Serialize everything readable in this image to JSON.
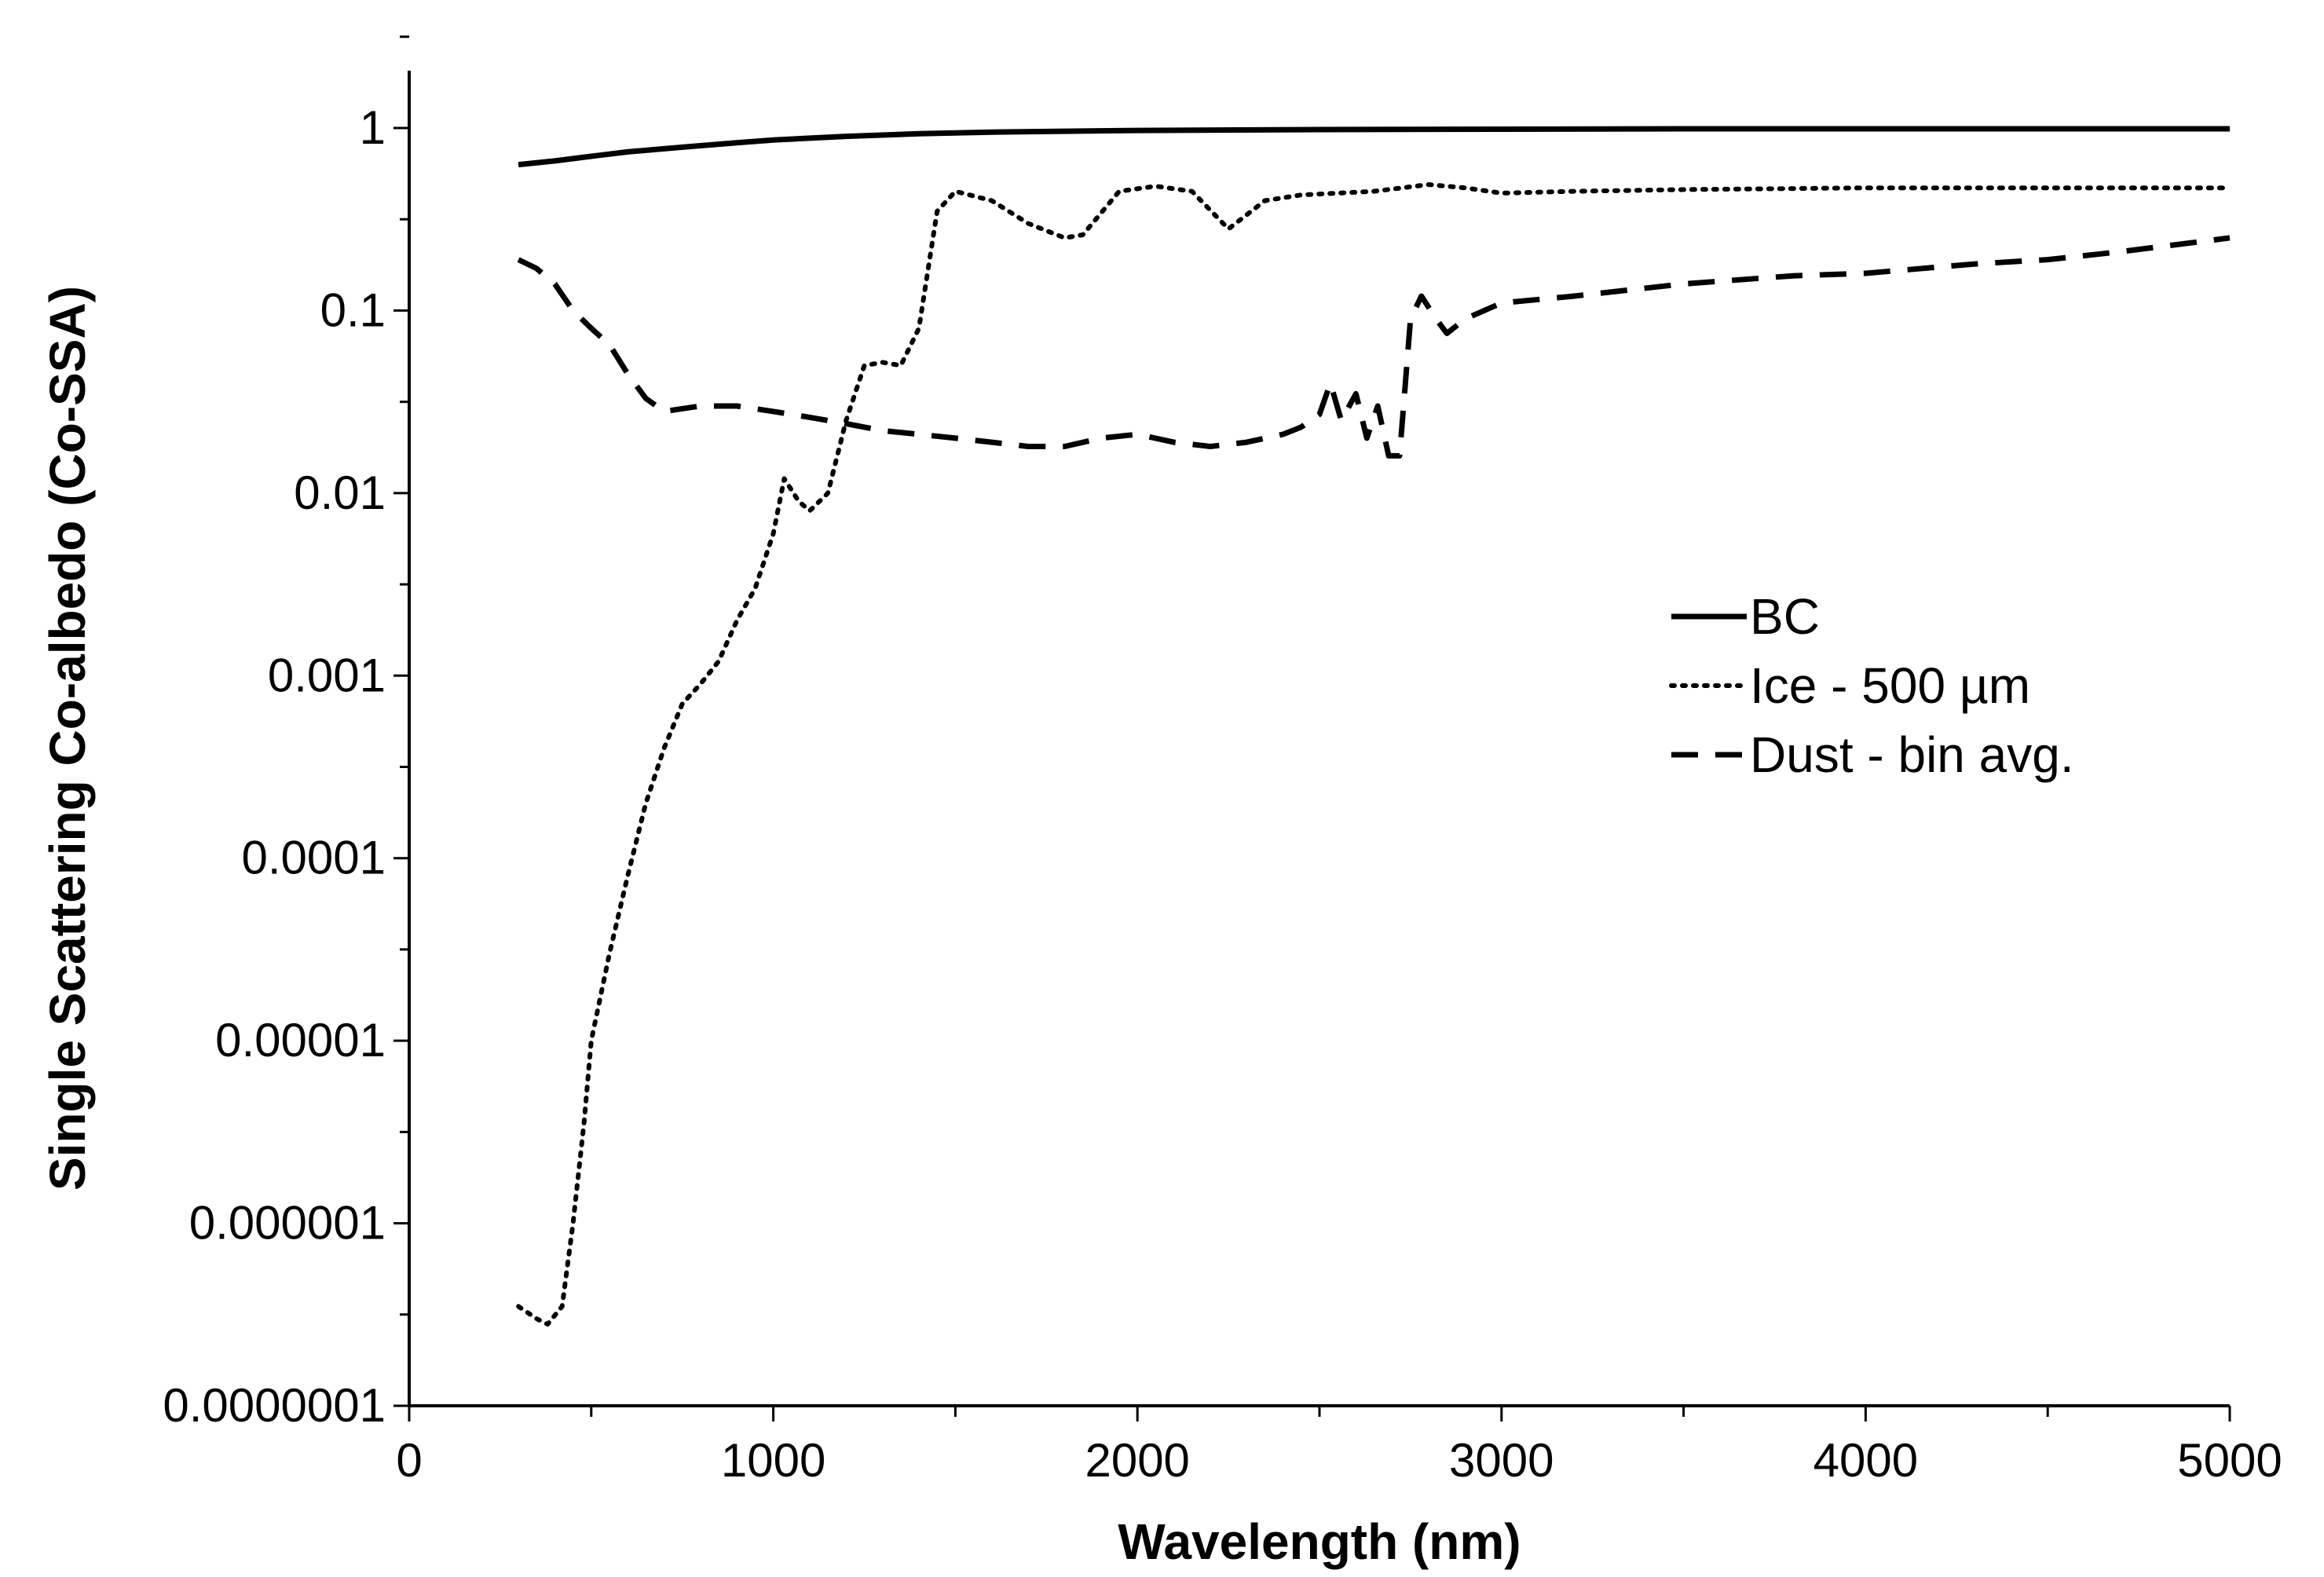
{
  "chart_data": {
    "type": "line",
    "title": "",
    "xlabel": "Wavelength (nm)",
    "ylabel": "Single Scattering Co-albedo (Co-SSA)",
    "x_scale": "linear",
    "y_scale": "log",
    "xlim": [
      0,
      5000
    ],
    "ylim": [
      1e-07,
      2
    ],
    "x_ticks": [
      0,
      1000,
      2000,
      3000,
      4000,
      5000
    ],
    "x_tick_labels": [
      "0",
      "1000",
      "2000",
      "3000",
      "4000",
      "5000"
    ],
    "y_ticks": [
      1e-07,
      1e-06,
      1e-05,
      0.0001,
      0.001,
      0.01,
      0.1,
      1
    ],
    "y_tick_labels": [
      "0.0000001",
      "0.000001",
      "0.00001",
      "0.0001",
      "0.001",
      "0.01",
      "0.1",
      "1"
    ],
    "grid": false,
    "legend_position": "center-right",
    "series": [
      {
        "name": "BC",
        "style": "solid",
        "color": "#000000",
        "points": [
          [
            300,
            0.63
          ],
          [
            400,
            0.66
          ],
          [
            500,
            0.7
          ],
          [
            600,
            0.74
          ],
          [
            700,
            0.77
          ],
          [
            800,
            0.8
          ],
          [
            900,
            0.83
          ],
          [
            1000,
            0.86
          ],
          [
            1200,
            0.9
          ],
          [
            1400,
            0.93
          ],
          [
            1600,
            0.95
          ],
          [
            1800,
            0.96
          ],
          [
            2000,
            0.97
          ],
          [
            2500,
            0.98
          ],
          [
            3000,
            0.985
          ],
          [
            3500,
            0.99
          ],
          [
            4000,
            0.99
          ],
          [
            4500,
            0.99
          ],
          [
            5000,
            0.99
          ]
        ]
      },
      {
        "name": "Ice - 500 µm",
        "style": "dotted",
        "color": "#000000",
        "points": [
          [
            300,
            3.5e-07
          ],
          [
            350,
            3e-07
          ],
          [
            380,
            2.8e-07
          ],
          [
            420,
            3.5e-07
          ],
          [
            450,
            1e-06
          ],
          [
            480,
            3.5e-06
          ],
          [
            500,
            1e-05
          ],
          [
            550,
            3e-05
          ],
          [
            600,
            8e-05
          ],
          [
            650,
            0.0002
          ],
          [
            700,
            0.0004
          ],
          [
            750,
            0.0007
          ],
          [
            800,
            0.0009
          ],
          [
            850,
            0.0012
          ],
          [
            900,
            0.002
          ],
          [
            950,
            0.003
          ],
          [
            1000,
            0.006
          ],
          [
            1030,
            0.012
          ],
          [
            1070,
            0.009
          ],
          [
            1100,
            0.008
          ],
          [
            1150,
            0.01
          ],
          [
            1200,
            0.025
          ],
          [
            1250,
            0.05
          ],
          [
            1300,
            0.052
          ],
          [
            1350,
            0.05
          ],
          [
            1400,
            0.08
          ],
          [
            1450,
            0.35
          ],
          [
            1500,
            0.45
          ],
          [
            1600,
            0.4
          ],
          [
            1700,
            0.3
          ],
          [
            1800,
            0.25
          ],
          [
            1850,
            0.26
          ],
          [
            1950,
            0.45
          ],
          [
            2050,
            0.48
          ],
          [
            2150,
            0.45
          ],
          [
            2250,
            0.28
          ],
          [
            2350,
            0.4
          ],
          [
            2450,
            0.43
          ],
          [
            2550,
            0.44
          ],
          [
            2650,
            0.45
          ],
          [
            2800,
            0.49
          ],
          [
            2900,
            0.47
          ],
          [
            3000,
            0.44
          ],
          [
            3200,
            0.45
          ],
          [
            3500,
            0.46
          ],
          [
            4000,
            0.47
          ],
          [
            4500,
            0.47
          ],
          [
            5000,
            0.47
          ]
        ]
      },
      {
        "name": "Dust - bin avg.",
        "style": "dashed",
        "color": "#000000",
        "points": [
          [
            300,
            0.19
          ],
          [
            350,
            0.17
          ],
          [
            400,
            0.14
          ],
          [
            450,
            0.1
          ],
          [
            500,
            0.08
          ],
          [
            550,
            0.065
          ],
          [
            600,
            0.045
          ],
          [
            650,
            0.033
          ],
          [
            700,
            0.028
          ],
          [
            800,
            0.03
          ],
          [
            900,
            0.03
          ],
          [
            1000,
            0.028
          ],
          [
            1100,
            0.026
          ],
          [
            1200,
            0.024
          ],
          [
            1300,
            0.022
          ],
          [
            1400,
            0.021
          ],
          [
            1500,
            0.02
          ],
          [
            1600,
            0.019
          ],
          [
            1700,
            0.018
          ],
          [
            1800,
            0.018
          ],
          [
            1900,
            0.02
          ],
          [
            2000,
            0.021
          ],
          [
            2100,
            0.019
          ],
          [
            2200,
            0.018
          ],
          [
            2300,
            0.019
          ],
          [
            2400,
            0.021
          ],
          [
            2450,
            0.023
          ],
          [
            2500,
            0.027
          ],
          [
            2530,
            0.04
          ],
          [
            2560,
            0.025
          ],
          [
            2600,
            0.035
          ],
          [
            2630,
            0.02
          ],
          [
            2660,
            0.03
          ],
          [
            2690,
            0.016
          ],
          [
            2720,
            0.016
          ],
          [
            2750,
            0.09
          ],
          [
            2780,
            0.12
          ],
          [
            2820,
            0.09
          ],
          [
            2850,
            0.075
          ],
          [
            2900,
            0.09
          ],
          [
            3000,
            0.11
          ],
          [
            3200,
            0.12
          ],
          [
            3500,
            0.14
          ],
          [
            3800,
            0.155
          ],
          [
            4000,
            0.16
          ],
          [
            4300,
            0.18
          ],
          [
            4500,
            0.19
          ],
          [
            4700,
            0.21
          ],
          [
            5000,
            0.25
          ]
        ]
      }
    ]
  }
}
